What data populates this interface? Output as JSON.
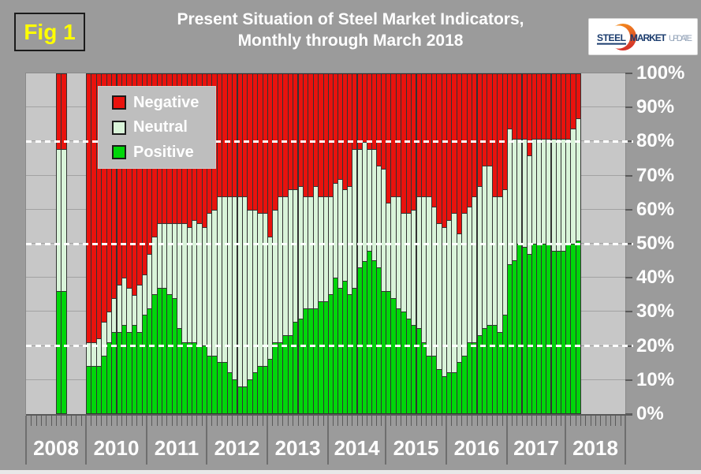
{
  "figure_label": "Fig 1",
  "header": {
    "title_line1": "Present Situation of Steel Market Indicators,",
    "title_line2": "Monthly through March 2018"
  },
  "logo": {
    "word1": "STEEL",
    "word2": "MARKET",
    "word3": "UPDATE"
  },
  "colors": {
    "page_bg": "#9B9B9B",
    "plot_bg": "#C7C7C7",
    "negative": "#E9120D",
    "neutral": "#D9F4D9",
    "positive": "#00D60A",
    "fig_label_text": "#FFFF00",
    "text": "#FFFFFF"
  },
  "chart_data": {
    "type": "bar",
    "stacked": true,
    "title": "Present Situation of Steel Market Indicators, Monthly through March 2018",
    "unit": "%",
    "ylim": [
      0,
      100
    ],
    "ytick_labels": [
      "0%",
      "10%",
      "20%",
      "30%",
      "40%",
      "50%",
      "60%",
      "70%",
      "80%",
      "90%",
      "100%"
    ],
    "dashed_guides_pct": [
      20,
      50,
      80
    ],
    "grid": "horizontal-10pct",
    "legend_position": "top-left-inside",
    "legend": [
      {
        "label": "Negative",
        "color": "#E9120D"
      },
      {
        "label": "Neutral",
        "color": "#D9F4D9"
      },
      {
        "label": "Positive",
        "color": "#00D60A"
      }
    ],
    "series_order_bottom_to_top": [
      "Positive",
      "Neutral",
      "Negative"
    ],
    "groups": [
      {
        "year": "2008",
        "slots": 12,
        "bars": [
          {
            "slot": 6,
            "positive": 36,
            "neutral": 42,
            "negative": 22
          },
          {
            "slot": 7,
            "positive": 36,
            "neutral": 42,
            "negative": 22
          }
        ]
      },
      {
        "year": "2010",
        "slots": 12,
        "bars": [
          {
            "slot": 0,
            "positive": 14,
            "neutral": 7,
            "negative": 79
          },
          {
            "slot": 1,
            "positive": 14,
            "neutral": 7,
            "negative": 79
          },
          {
            "slot": 2,
            "positive": 14,
            "neutral": 8,
            "negative": 78
          },
          {
            "slot": 3,
            "positive": 17,
            "neutral": 10,
            "negative": 73
          },
          {
            "slot": 4,
            "positive": 21,
            "neutral": 9,
            "negative": 70
          },
          {
            "slot": 5,
            "positive": 24,
            "neutral": 10,
            "negative": 66
          },
          {
            "slot": 6,
            "positive": 24,
            "neutral": 14,
            "negative": 62
          },
          {
            "slot": 7,
            "positive": 26,
            "neutral": 14,
            "negative": 60
          },
          {
            "slot": 8,
            "positive": 24,
            "neutral": 13,
            "negative": 63
          },
          {
            "slot": 9,
            "positive": 26,
            "neutral": 9,
            "negative": 65
          },
          {
            "slot": 10,
            "positive": 24,
            "neutral": 14,
            "negative": 62
          },
          {
            "slot": 11,
            "positive": 29,
            "neutral": 12,
            "negative": 59
          }
        ]
      },
      {
        "year": "2011",
        "slots": 12,
        "bars": [
          {
            "slot": 0,
            "positive": 31,
            "neutral": 16,
            "negative": 53
          },
          {
            "slot": 1,
            "positive": 35,
            "neutral": 17,
            "negative": 48
          },
          {
            "slot": 2,
            "positive": 37,
            "neutral": 19,
            "negative": 44
          },
          {
            "slot": 3,
            "positive": 37,
            "neutral": 19,
            "negative": 44
          },
          {
            "slot": 4,
            "positive": 35,
            "neutral": 21,
            "negative": 44
          },
          {
            "slot": 5,
            "positive": 34,
            "neutral": 22,
            "negative": 44
          },
          {
            "slot": 6,
            "positive": 25,
            "neutral": 31,
            "negative": 44
          },
          {
            "slot": 7,
            "positive": 21,
            "neutral": 35,
            "negative": 44
          },
          {
            "slot": 8,
            "positive": 21,
            "neutral": 34,
            "negative": 45
          },
          {
            "slot": 9,
            "positive": 21,
            "neutral": 36,
            "negative": 43
          },
          {
            "slot": 10,
            "positive": 20,
            "neutral": 36,
            "negative": 44
          },
          {
            "slot": 11,
            "positive": 20,
            "neutral": 35,
            "negative": 45
          }
        ]
      },
      {
        "year": "2012",
        "slots": 12,
        "bars": [
          {
            "slot": 0,
            "positive": 17,
            "neutral": 42,
            "negative": 41
          },
          {
            "slot": 1,
            "positive": 17,
            "neutral": 43,
            "negative": 40
          },
          {
            "slot": 2,
            "positive": 15,
            "neutral": 49,
            "negative": 36
          },
          {
            "slot": 3,
            "positive": 15,
            "neutral": 49,
            "negative": 36
          },
          {
            "slot": 4,
            "positive": 12,
            "neutral": 52,
            "negative": 36
          },
          {
            "slot": 5,
            "positive": 10,
            "neutral": 54,
            "negative": 36
          },
          {
            "slot": 6,
            "positive": 8,
            "neutral": 56,
            "negative": 36
          },
          {
            "slot": 7,
            "positive": 8,
            "neutral": 56,
            "negative": 36
          },
          {
            "slot": 8,
            "positive": 10,
            "neutral": 50,
            "negative": 40
          },
          {
            "slot": 9,
            "positive": 12,
            "neutral": 48,
            "negative": 40
          },
          {
            "slot": 10,
            "positive": 14,
            "neutral": 45,
            "negative": 41
          },
          {
            "slot": 11,
            "positive": 14,
            "neutral": 45,
            "negative": 41
          }
        ]
      },
      {
        "year": "2013",
        "slots": 12,
        "bars": [
          {
            "slot": 0,
            "positive": 16,
            "neutral": 36,
            "negative": 48
          },
          {
            "slot": 1,
            "positive": 21,
            "neutral": 39,
            "negative": 40
          },
          {
            "slot": 2,
            "positive": 21,
            "neutral": 43,
            "negative": 36
          },
          {
            "slot": 3,
            "positive": 23,
            "neutral": 41,
            "negative": 36
          },
          {
            "slot": 4,
            "positive": 23,
            "neutral": 43,
            "negative": 34
          },
          {
            "slot": 5,
            "positive": 27,
            "neutral": 39,
            "negative": 34
          },
          {
            "slot": 6,
            "positive": 28,
            "neutral": 39,
            "negative": 33
          },
          {
            "slot": 7,
            "positive": 31,
            "neutral": 33,
            "negative": 36
          },
          {
            "slot": 8,
            "positive": 31,
            "neutral": 33,
            "negative": 36
          },
          {
            "slot": 9,
            "positive": 31,
            "neutral": 36,
            "negative": 33
          },
          {
            "slot": 10,
            "positive": 33,
            "neutral": 31,
            "negative": 36
          },
          {
            "slot": 11,
            "positive": 33,
            "neutral": 31,
            "negative": 36
          }
        ]
      },
      {
        "year": "2014",
        "slots": 12,
        "bars": [
          {
            "slot": 0,
            "positive": 35,
            "neutral": 29,
            "negative": 36
          },
          {
            "slot": 1,
            "positive": 40,
            "neutral": 28,
            "negative": 32
          },
          {
            "slot": 2,
            "positive": 37,
            "neutral": 32,
            "negative": 31
          },
          {
            "slot": 3,
            "positive": 39,
            "neutral": 27,
            "negative": 34
          },
          {
            "slot": 4,
            "positive": 35,
            "neutral": 32,
            "negative": 33
          },
          {
            "slot": 5,
            "positive": 37,
            "neutral": 41,
            "negative": 22
          },
          {
            "slot": 6,
            "positive": 43,
            "neutral": 35,
            "negative": 22
          },
          {
            "slot": 7,
            "positive": 45,
            "neutral": 35,
            "negative": 20
          },
          {
            "slot": 8,
            "positive": 48,
            "neutral": 30,
            "negative": 22
          },
          {
            "slot": 9,
            "positive": 45,
            "neutral": 33,
            "negative": 22
          },
          {
            "slot": 10,
            "positive": 43,
            "neutral": 30,
            "negative": 27
          },
          {
            "slot": 11,
            "positive": 36,
            "neutral": 36,
            "negative": 28
          }
        ]
      },
      {
        "year": "2015",
        "slots": 12,
        "bars": [
          {
            "slot": 0,
            "positive": 36,
            "neutral": 26,
            "negative": 38
          },
          {
            "slot": 1,
            "positive": 34,
            "neutral": 30,
            "negative": 36
          },
          {
            "slot": 2,
            "positive": 31,
            "neutral": 33,
            "negative": 36
          },
          {
            "slot": 3,
            "positive": 30,
            "neutral": 29,
            "negative": 41
          },
          {
            "slot": 4,
            "positive": 28,
            "neutral": 31,
            "negative": 41
          },
          {
            "slot": 5,
            "positive": 26,
            "neutral": 34,
            "negative": 40
          },
          {
            "slot": 6,
            "positive": 25,
            "neutral": 39,
            "negative": 36
          },
          {
            "slot": 7,
            "positive": 21,
            "neutral": 43,
            "negative": 36
          },
          {
            "slot": 8,
            "positive": 17,
            "neutral": 47,
            "negative": 36
          },
          {
            "slot": 9,
            "positive": 17,
            "neutral": 44,
            "negative": 39
          },
          {
            "slot": 10,
            "positive": 13,
            "neutral": 43,
            "negative": 44
          },
          {
            "slot": 11,
            "positive": 11,
            "neutral": 44,
            "negative": 45
          }
        ]
      },
      {
        "year": "2016",
        "slots": 12,
        "bars": [
          {
            "slot": 0,
            "positive": 12,
            "neutral": 45,
            "negative": 43
          },
          {
            "slot": 1,
            "positive": 12,
            "neutral": 47,
            "negative": 41
          },
          {
            "slot": 2,
            "positive": 15,
            "neutral": 38,
            "negative": 47
          },
          {
            "slot": 3,
            "positive": 17,
            "neutral": 42,
            "negative": 41
          },
          {
            "slot": 4,
            "positive": 21,
            "neutral": 40,
            "negative": 39
          },
          {
            "slot": 5,
            "positive": 21,
            "neutral": 43,
            "negative": 36
          },
          {
            "slot": 6,
            "positive": 23,
            "neutral": 44,
            "negative": 33
          },
          {
            "slot": 7,
            "positive": 25,
            "neutral": 48,
            "negative": 27
          },
          {
            "slot": 8,
            "positive": 26,
            "neutral": 47,
            "negative": 27
          },
          {
            "slot": 9,
            "positive": 26,
            "neutral": 38,
            "negative": 36
          },
          {
            "slot": 10,
            "positive": 24,
            "neutral": 40,
            "negative": 36
          },
          {
            "slot": 11,
            "positive": 29,
            "neutral": 37,
            "negative": 34
          }
        ]
      },
      {
        "year": "2017",
        "slots": 12,
        "bars": [
          {
            "slot": 0,
            "positive": 44,
            "neutral": 40,
            "negative": 16
          },
          {
            "slot": 1,
            "positive": 45,
            "neutral": 36,
            "negative": 19
          },
          {
            "slot": 2,
            "positive": 50,
            "neutral": 31,
            "negative": 19
          },
          {
            "slot": 3,
            "positive": 49,
            "neutral": 32,
            "negative": 19
          },
          {
            "slot": 4,
            "positive": 47,
            "neutral": 29,
            "negative": 24
          },
          {
            "slot": 5,
            "positive": 50,
            "neutral": 31,
            "negative": 19
          },
          {
            "slot": 6,
            "positive": 50,
            "neutral": 31,
            "negative": 19
          },
          {
            "slot": 7,
            "positive": 50,
            "neutral": 31,
            "negative": 19
          },
          {
            "slot": 8,
            "positive": 50,
            "neutral": 31,
            "negative": 19
          },
          {
            "slot": 9,
            "positive": 48,
            "neutral": 33,
            "negative": 19
          },
          {
            "slot": 10,
            "positive": 48,
            "neutral": 33,
            "negative": 19
          },
          {
            "slot": 11,
            "positive": 48,
            "neutral": 33,
            "negative": 19
          }
        ]
      },
      {
        "year": "2018",
        "slots": 12,
        "bars": [
          {
            "slot": 0,
            "positive": 50,
            "neutral": 31,
            "negative": 19
          },
          {
            "slot": 1,
            "positive": 50,
            "neutral": 34,
            "negative": 16
          },
          {
            "slot": 2,
            "positive": 51,
            "neutral": 36,
            "negative": 13
          }
        ]
      }
    ]
  }
}
